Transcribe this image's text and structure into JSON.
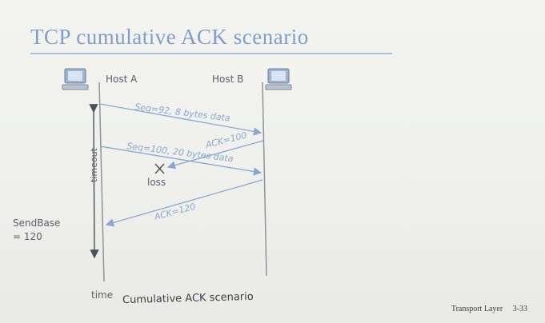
{
  "slide": {
    "title": "TCP cumulative ACK scenario",
    "caption": "Cumulative ACK scenario",
    "footer_left": "Transport Layer",
    "footer_page": "3-33"
  },
  "diagram": {
    "host_a": "Host A",
    "host_b": "Host B",
    "msg_seq92": "Seq=92, 8 bytes data",
    "msg_ack100": "ACK=100",
    "msg_seq100": "Seq=100, 20 bytes data",
    "loss_label": "loss",
    "msg_ack120": "ACK=120",
    "timeout_label": "timeout",
    "sendbase_line1": "SendBase",
    "sendbase_line2": "= 120",
    "time_label": "time"
  },
  "colors": {
    "title": "#7f9fc7",
    "arrow": "#8aa8cf",
    "timeline": "#8e949c",
    "text": "#5b5f68"
  },
  "icons": [
    "computer-icon-host-a",
    "computer-icon-host-b"
  ]
}
